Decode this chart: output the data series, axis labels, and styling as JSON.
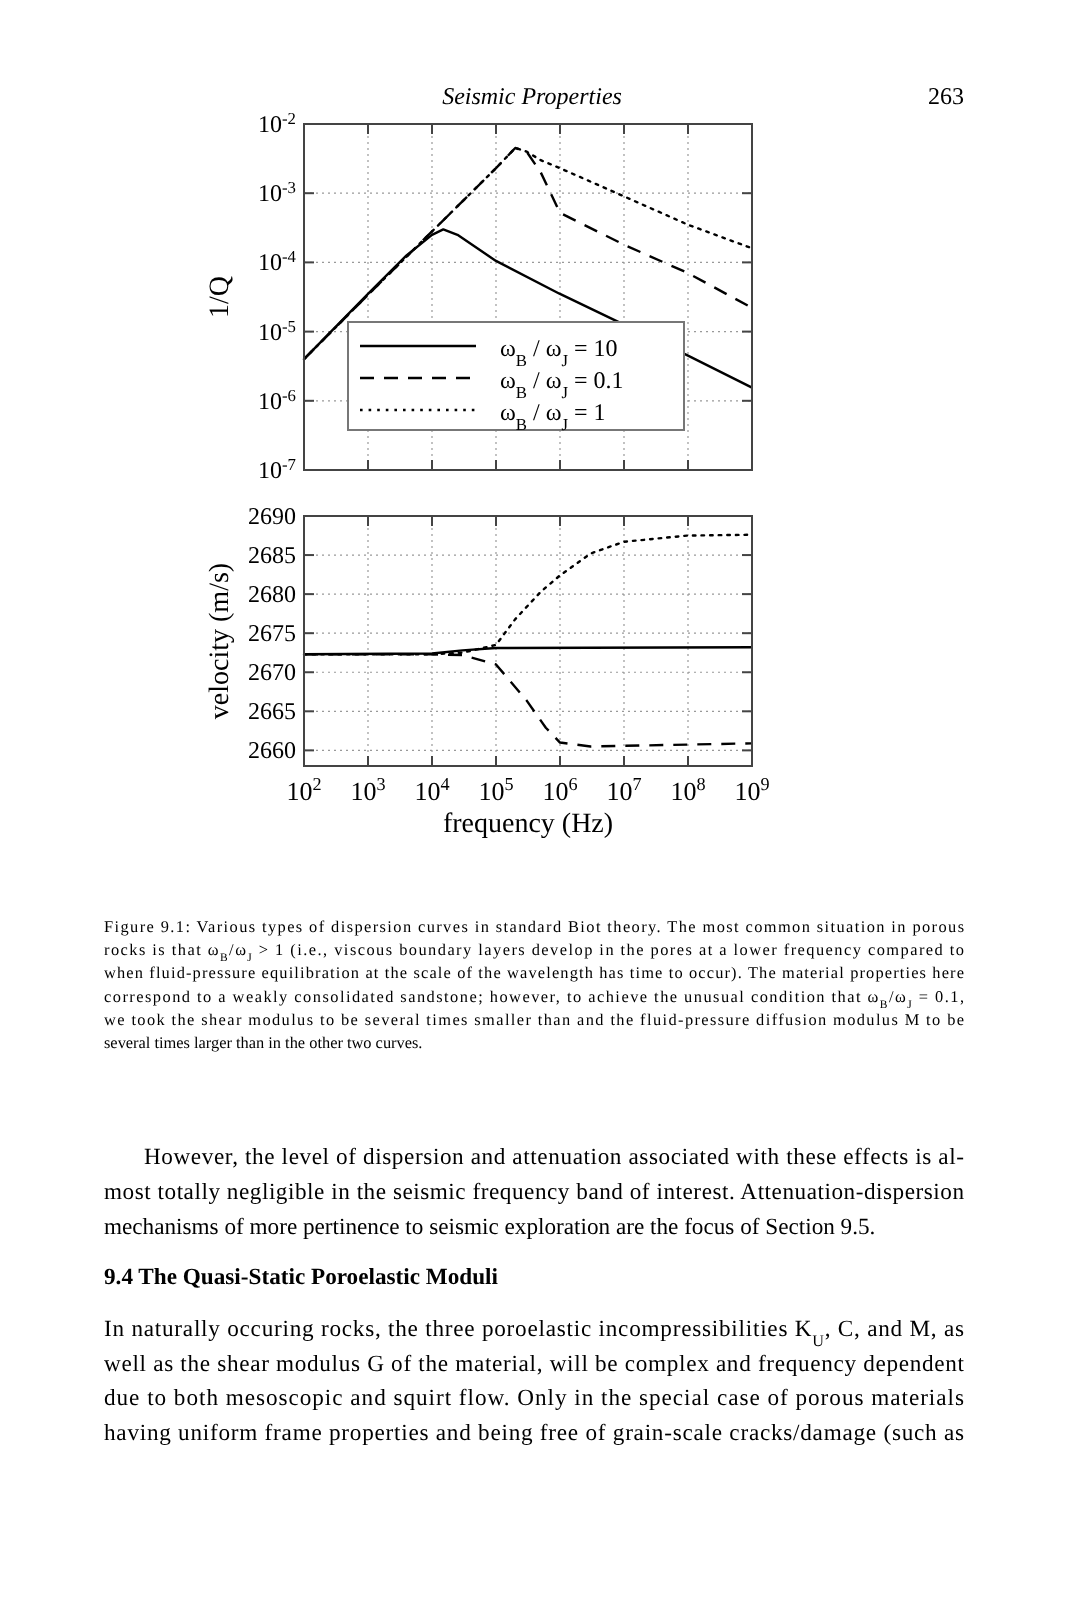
{
  "chart_data": [
    {
      "type": "line",
      "ylabel": "1/Q",
      "log": "xy",
      "grid": true,
      "legend": "bottom left",
      "tick_labels": "y",
      "xlim": [
        100,
        1000000000
      ],
      "ylim": [
        1e-07,
        0.01
      ],
      "xticks": [
        {
          "value": 100,
          "label": null
        },
        {
          "value": 1000,
          "label": null
        },
        {
          "value": 10000,
          "label": null
        },
        {
          "value": 100000,
          "label": null
        },
        {
          "value": 1000000,
          "label": null
        },
        {
          "value": 10000000,
          "label": null
        },
        {
          "value": 100000000,
          "label": null
        },
        {
          "value": 1000000000,
          "label": null
        }
      ],
      "yticks": [
        {
          "value": 1e-07,
          "label": "10$^{-7}$"
        },
        {
          "value": 1e-06,
          "label": "10$^{-6}$"
        },
        {
          "value": 1e-05,
          "label": "10$^{-5}$"
        },
        {
          "value": 0.0001,
          "label": "10$^{-4}$"
        },
        {
          "value": 0.001,
          "label": "10$^{-3}$"
        },
        {
          "value": 0.01,
          "label": "10$^{-2}$"
        }
      ],
      "annotations": [
        "Seismic Properties",
        "263"
      ],
      "series": [
        {
          "name": "ω$_{B}$ / ω$_{J}$ = 10",
          "color": "#000000",
          "line_style": "solid",
          "x": [
            100,
            1000,
            4000,
            10000,
            15000,
            25000,
            100000,
            1000000,
            10000000,
            100000000,
            1000000000
          ],
          "values": [
            4e-06,
            3.5e-05,
            0.000126,
            0.00025,
            0.0003,
            0.00025,
            0.000105,
            3.5e-05,
            1.26e-05,
            4.5e-06,
            1.55e-06
          ]
        },
        {
          "name": "ω$_{B}$ / ω$_{J}$ = 0.1",
          "color": "#000000",
          "line_style": "dashed",
          "x": [
            100,
            1000,
            10000,
            100000,
            200000,
            300000,
            500000,
            1000000,
            10000000,
            100000000,
            1000000000
          ],
          "values": [
            4e-06,
            3.4e-05,
            0.00028,
            0.0023,
            0.0045,
            0.004,
            0.002,
            0.00052,
            0.00018,
            7e-05,
            2.2e-05
          ]
        },
        {
          "name": "ω$_{B}$ / ω$_{J}$ = 1",
          "color": "#000000",
          "line_style": "dotted",
          "x": [
            100,
            1000,
            10000,
            100000,
            200000,
            300000,
            500000,
            1000000,
            10000000,
            100000000,
            1000000000
          ],
          "values": [
            4e-06,
            3.4e-05,
            0.00028,
            0.0023,
            0.0045,
            0.004,
            0.003,
            0.0023,
            0.0009,
            0.00035,
            0.00016
          ]
        }
      ]
    },
    {
      "type": "line",
      "ylabel": "velocity (m/s)",
      "xlabel": "frequency (Hz)",
      "log": "x",
      "grid": true,
      "xlim": [
        100,
        1000000000
      ],
      "ylim": [
        2658,
        2690
      ],
      "xticks": [
        {
          "value": 100,
          "label": "10$^{2}$"
        },
        {
          "value": 1000,
          "label": "10$^{3}$"
        },
        {
          "value": 10000,
          "label": "10$^{4}$"
        },
        {
          "value": 100000,
          "label": "10$^{5}$"
        },
        {
          "value": 1000000,
          "label": "10$^{6}$"
        },
        {
          "value": 10000000,
          "label": "10$^{7}$"
        },
        {
          "value": 100000000,
          "label": "10$^{8}$"
        },
        {
          "value": 1000000000,
          "label": "10$^{9}$"
        }
      ],
      "yticks": [
        2660,
        2665,
        2670,
        2675,
        2680,
        2685,
        2690
      ],
      "annotations": [
        "Figure 9.1: Various types of dispersion curves in standard Biot theory. The most common situation in porous",
        "rocks is that ω$_{B}$/ω$_{J}$ > 1 (i.e., viscous boundary layers develop in the pores at a lower frequency compared to",
        "when fluid-pressure equilibration at the scale of the wavelength has time to occur). The material properties here",
        "correspond to a weakly consolidated sandstone; however, to achieve the unusual condition that ω$_{B}$/ω$_{J}$ = 0.1,",
        "we took the shear modulus to be several times smaller than and the fluid-pressure diffusion modulus M to be",
        "several times larger than in the other two curves.",
        "However, the level of dispersion and attenuation associated with these effects is al-",
        "most totally negligible in the seismic frequency band of interest. Attenuation-dispersion",
        "mechanisms of more pertinence to seismic exploration are the focus of Section 9.5.",
        "9.4 The Quasi-Static Poroelastic Moduli",
        "In naturally occuring rocks, the three poroelastic incompressibilities K$_{U}$, C, and M, as",
        "well as the shear modulus G of the material, will be complex and frequency dependent",
        "due to both mesoscopic and squirt flow. Only in the special case of porous materials",
        "having uniform frame properties and being free of grain-scale cracks/damage (such as"
      ],
      "series": [
        {
          "color": "#000000",
          "line_style": "solid",
          "x": [
            100,
            10000,
            30000,
            100000,
            1000000000
          ],
          "values": [
            2672.3,
            2672.4,
            2672.8,
            2673.1,
            2673.2
          ]
        },
        {
          "color": "#000000",
          "line_style": "dashed",
          "x": [
            100,
            10000,
            30000,
            100000,
            300000,
            600000,
            1000000,
            3000000,
            1000000000
          ],
          "values": [
            2672.3,
            2672.3,
            2672.2,
            2671.0,
            2666.4,
            2662.9,
            2661.0,
            2660.5,
            2660.9
          ]
        },
        {
          "color": "#000000",
          "line_style": "dotted",
          "x": [
            100,
            10000,
            30000,
            100000,
            200000,
            500000,
            1000000,
            3000000,
            10000000,
            100000000,
            1000000000
          ],
          "values": [
            2672.3,
            2672.3,
            2672.5,
            2673.5,
            2676.8,
            2680.3,
            2682.4,
            2685.2,
            2686.7,
            2687.5,
            2687.6
          ]
        }
      ]
    }
  ]
}
